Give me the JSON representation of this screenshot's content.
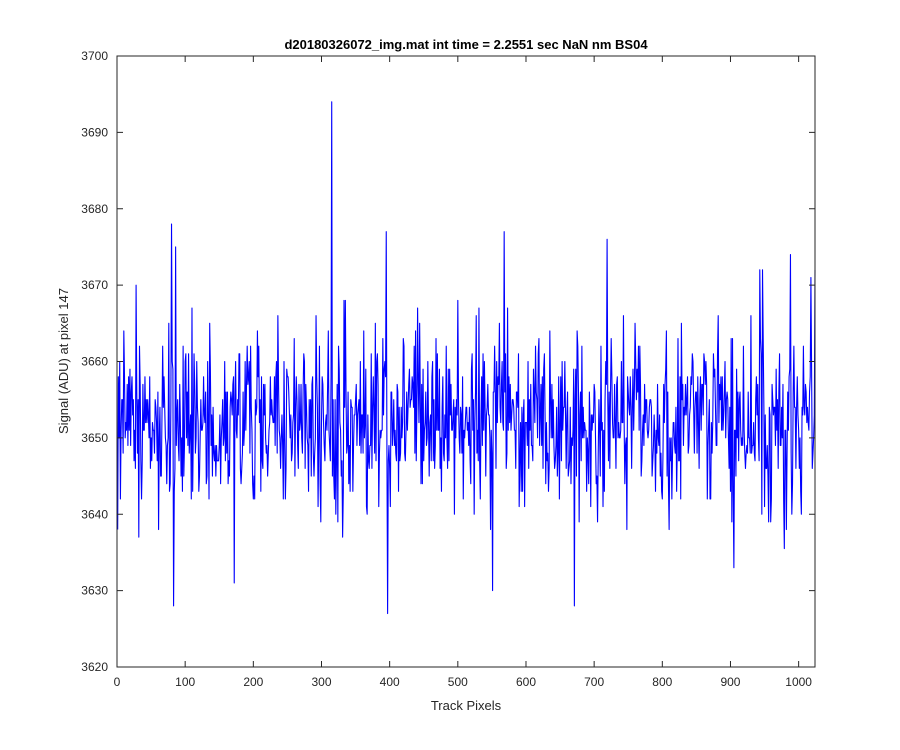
{
  "chart_data": {
    "type": "line",
    "title": "d20180326072_img.mat int time = 2.2551 sec  NaN nm BS04",
    "xlabel": "Track Pixels",
    "ylabel": "Signal (ADU) at pixel 147",
    "xlim": [
      0,
      1024
    ],
    "ylim": [
      3620,
      3700
    ],
    "xticks": [
      0,
      100,
      200,
      300,
      400,
      500,
      600,
      700,
      800,
      900,
      1000
    ],
    "yticks": [
      3620,
      3630,
      3640,
      3650,
      3660,
      3670,
      3680,
      3690,
      3700
    ],
    "line_color": "#0000ff",
    "grid": false,
    "box": true,
    "series": [
      {
        "x_start": 1,
        "x_step": 1,
        "count": 1024,
        "mean": 3652.5,
        "min": 3627,
        "max": 3694,
        "notable_points": [
          {
            "x": 28,
            "y": 3670
          },
          {
            "x": 32,
            "y": 3637
          },
          {
            "x": 80,
            "y": 3678
          },
          {
            "x": 83,
            "y": 3628
          },
          {
            "x": 86,
            "y": 3675
          },
          {
            "x": 172,
            "y": 3631
          },
          {
            "x": 315,
            "y": 3694
          },
          {
            "x": 395,
            "y": 3677
          },
          {
            "x": 397,
            "y": 3627
          },
          {
            "x": 551,
            "y": 3630
          },
          {
            "x": 568,
            "y": 3677
          },
          {
            "x": 671,
            "y": 3628
          },
          {
            "x": 719,
            "y": 3676
          },
          {
            "x": 905,
            "y": 3633
          },
          {
            "x": 943,
            "y": 3672
          },
          {
            "x": 947,
            "y": 3672
          },
          {
            "x": 988,
            "y": 3674
          },
          {
            "x": 1018,
            "y": 3671
          },
          {
            "x": 1024,
            "y": 3672
          }
        ]
      }
    ]
  }
}
